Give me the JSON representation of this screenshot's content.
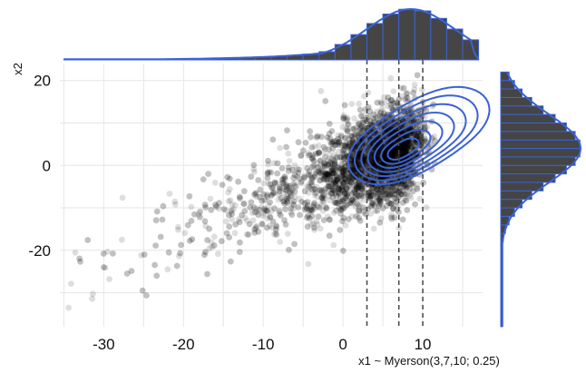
{
  "chart_data": {
    "type": "scatter",
    "xlabel": "x1 ~ Myerson(3,7,10; 0.25)",
    "ylabel": "x2",
    "xlim": [
      -35.5,
      17.5
    ],
    "ylim": [
      -38,
      24
    ],
    "x_ticks": [
      -30,
      -20,
      -10,
      0,
      10
    ],
    "y_ticks": [
      -20,
      0,
      20
    ],
    "grid": true,
    "marginal_x": "histogram with density line (top)",
    "marginal_y": "histogram with density line (right)",
    "reference_lines_x": [
      3,
      7,
      10
    ],
    "contours": "2D density contours",
    "colors": {
      "points": "#000000",
      "contour": "#3a62d6",
      "hist_fill": "#454545",
      "hist_edge": "#3a62d6",
      "ref_line": "#444444",
      "grid": "#e6e6e6"
    },
    "series": [
      {
        "cloud_ridge": [
          [
            -34,
            -34
          ],
          [
            -30,
            -29
          ],
          [
            -25,
            -24
          ],
          [
            -20,
            -18
          ],
          [
            -15,
            -12
          ],
          [
            -10,
            -8
          ],
          [
            -5,
            -4
          ],
          [
            0,
            0
          ],
          [
            5,
            3
          ],
          [
            10,
            7
          ],
          [
            15,
            11
          ]
        ],
        "n_points_approx": 4000
      }
    ]
  }
}
